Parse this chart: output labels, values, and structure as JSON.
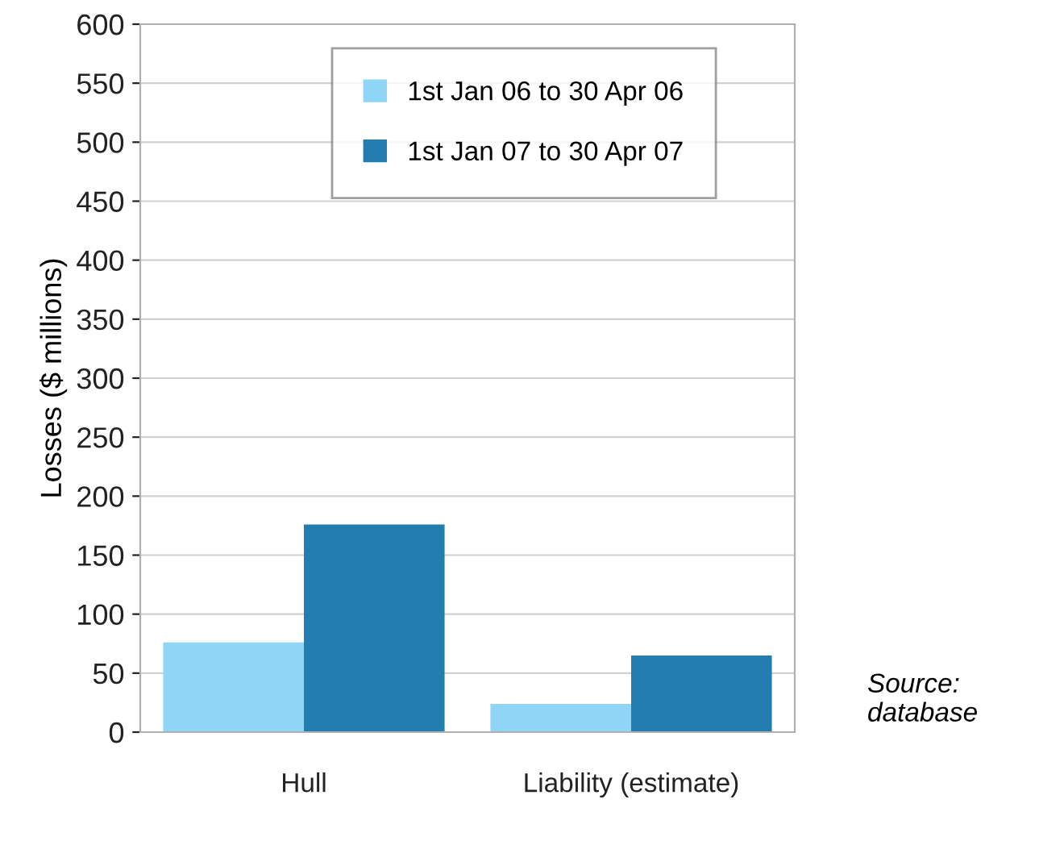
{
  "chart_data": {
    "type": "bar",
    "ylabel": "Losses ($ millions)",
    "categories": [
      "Hull",
      "Liability (estimate)"
    ],
    "series": [
      {
        "name": "1st Jan 06 to 30 Apr 06",
        "color": "#8fd6f6",
        "values": [
          76,
          24
        ]
      },
      {
        "name": "1st Jan 07 to 30 Apr 07",
        "color": "#247daf",
        "values": [
          176,
          65
        ]
      }
    ],
    "ylim": [
      0,
      600
    ],
    "yticks": [
      0,
      50,
      100,
      150,
      200,
      250,
      300,
      350,
      400,
      450,
      500,
      550,
      600
    ],
    "grid": "y",
    "legend": "top right",
    "annotations": [
      "Source:\ndatabase"
    ]
  }
}
